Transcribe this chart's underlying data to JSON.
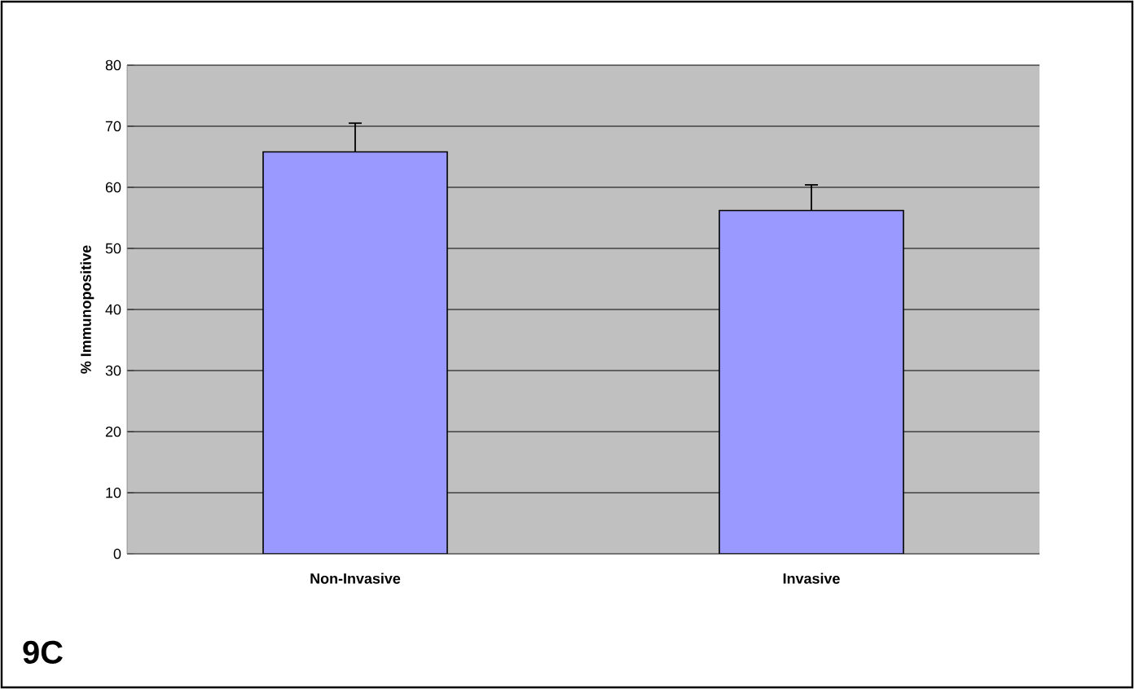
{
  "chart_data": {
    "type": "bar",
    "ylabel": "% Immunopositive",
    "categories": [
      "Non-Invasive",
      "Invasive"
    ],
    "values": [
      65.8,
      56.2
    ],
    "errors": [
      4.7,
      4.2
    ],
    "color": "#9999ff",
    "ylim": [
      0,
      80
    ],
    "yticks": [
      0,
      10,
      20,
      30,
      40,
      50,
      60,
      70,
      80
    ],
    "grid": "y",
    "annotations": [
      "9C"
    ]
  }
}
